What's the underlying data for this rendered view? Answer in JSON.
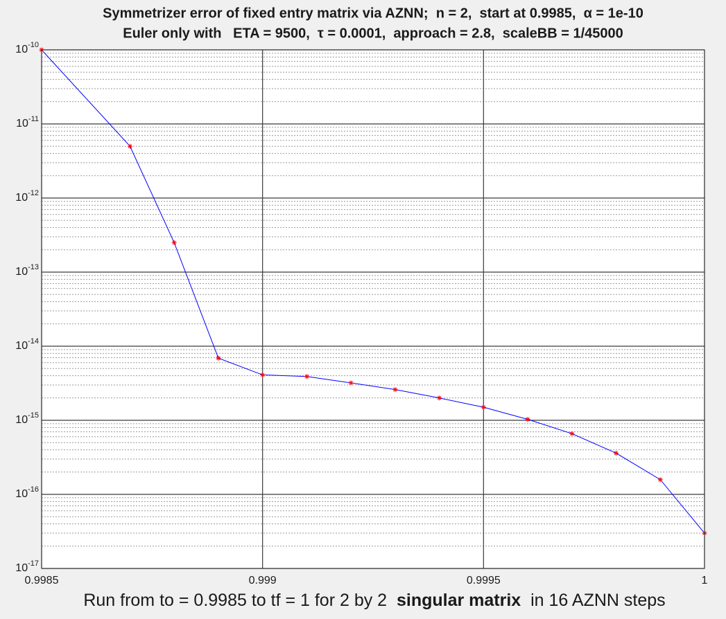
{
  "chart_data": {
    "type": "line",
    "title": "Symmetrizer error of fixed entry matrix via AZNN;  n = 2,  start at 0.9985,  α = 1e-10",
    "subtitle": "Euler only with   ETA = 9500,  τ = 0.0001,  approach = 2.8,  scaleBB = 1/45000",
    "x_label": [
      "Run from to = 0.9985 to tf = 1 for 2 by 2  ",
      "singular matrix",
      "  in 16 AZNN steps"
    ],
    "x": [
      0.9985,
      0.9987,
      0.9988,
      0.9989,
      0.999,
      0.9991,
      0.9992,
      0.9993,
      0.9994,
      0.9995,
      0.9996,
      0.9997,
      0.9998,
      0.9999,
      1
    ],
    "series": [
      {
        "color": "#0000ff",
        "marker_color": "#ff0000",
        "values": [
          1e-10,
          5e-12,
          2.5e-13,
          6.9e-15,
          4.1e-15,
          3.9e-15,
          3.2e-15,
          2.6e-15,
          2e-15,
          1.5e-15,
          1.03e-15,
          6.6e-16,
          3.6e-16,
          1.58e-16,
          3e-17
        ]
      }
    ],
    "xlim": [
      0.9985,
      1
    ],
    "xticks": [
      0.9985,
      0.999,
      0.9995,
      1
    ],
    "ylim": [
      1e-17,
      1e-10
    ],
    "yscale": "log",
    "yticks": [
      {
        "value": 1e-17,
        "label": "10^-17"
      },
      {
        "value": 1e-16,
        "label": "10^-16"
      },
      {
        "value": 1e-15,
        "label": "10^-15"
      },
      {
        "value": 1e-14,
        "label": "10^-14"
      },
      {
        "value": 1e-13,
        "label": "10^-13"
      },
      {
        "value": 1e-12,
        "label": "10^-12"
      },
      {
        "value": 1e-11,
        "label": "10^-11"
      },
      {
        "value": 1e-10,
        "label": "10^-10"
      }
    ],
    "grid": true,
    "minor_grid": true
  }
}
